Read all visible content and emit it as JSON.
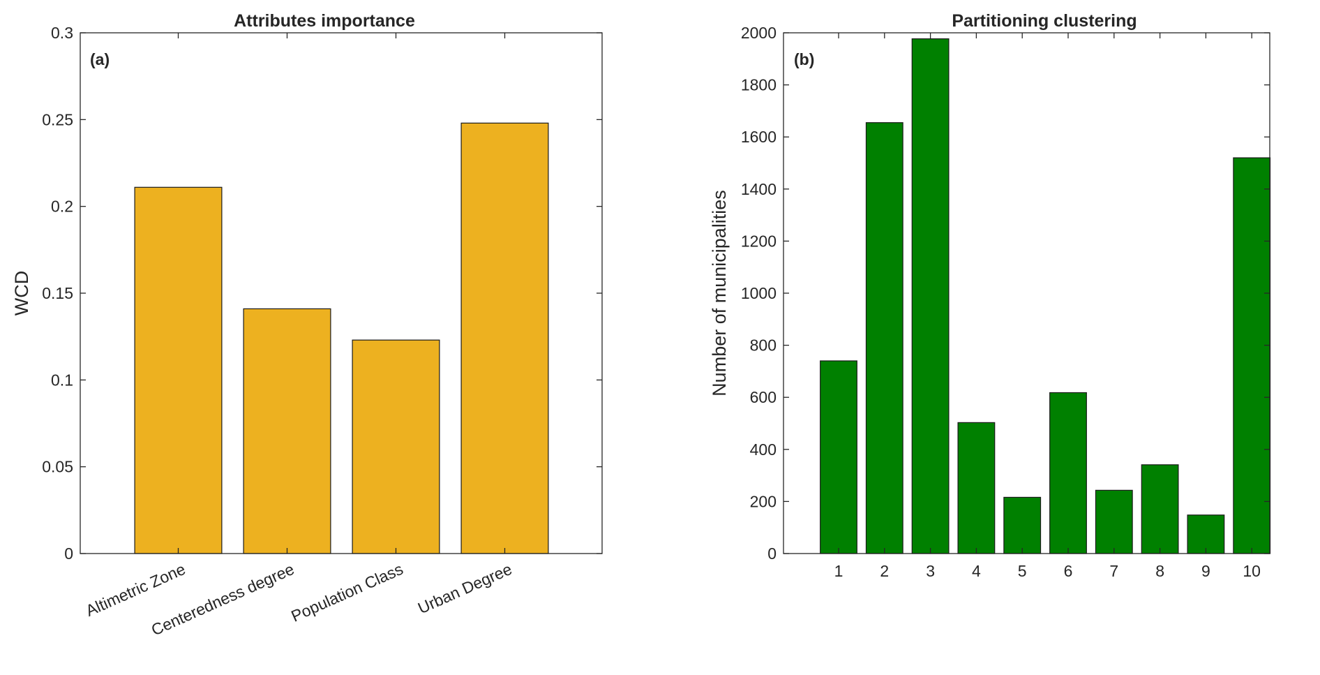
{
  "chart_data": [
    {
      "type": "bar",
      "title": "Attributes importance",
      "panel_label": "(a)",
      "xlabel": "",
      "ylabel": "WCD",
      "categories": [
        "Altimetric Zone",
        "Centeredness degree",
        "Population Class",
        "Urban Degree"
      ],
      "values": [
        0.211,
        0.141,
        0.123,
        0.248
      ],
      "ylim": [
        0,
        0.3
      ],
      "yticks": [
        0,
        0.05,
        0.1,
        0.15,
        0.2,
        0.25,
        0.3
      ],
      "ytick_labels": [
        "0",
        "0.05",
        "0.1",
        "0.15",
        "0.2",
        "0.25",
        "0.3"
      ],
      "bar_color": "#EDB120",
      "grid": false,
      "legend": "none"
    },
    {
      "type": "bar",
      "title": "Partitioning clustering",
      "panel_label": "(b)",
      "xlabel": "",
      "ylabel": "Number of municipalities",
      "categories": [
        "1",
        "2",
        "3",
        "4",
        "5",
        "6",
        "7",
        "8",
        "9",
        "10"
      ],
      "values": [
        740,
        1655,
        1977,
        503,
        216,
        618,
        243,
        341,
        148,
        1520
      ],
      "ylim": [
        0,
        2000
      ],
      "yticks": [
        0,
        200,
        400,
        600,
        800,
        1000,
        1200,
        1400,
        1600,
        1800,
        2000
      ],
      "ytick_labels": [
        "0",
        "200",
        "400",
        "600",
        "800",
        "1000",
        "1200",
        "1400",
        "1600",
        "1800",
        "2000"
      ],
      "bar_color": "#008000",
      "grid": false,
      "legend": "none"
    }
  ]
}
